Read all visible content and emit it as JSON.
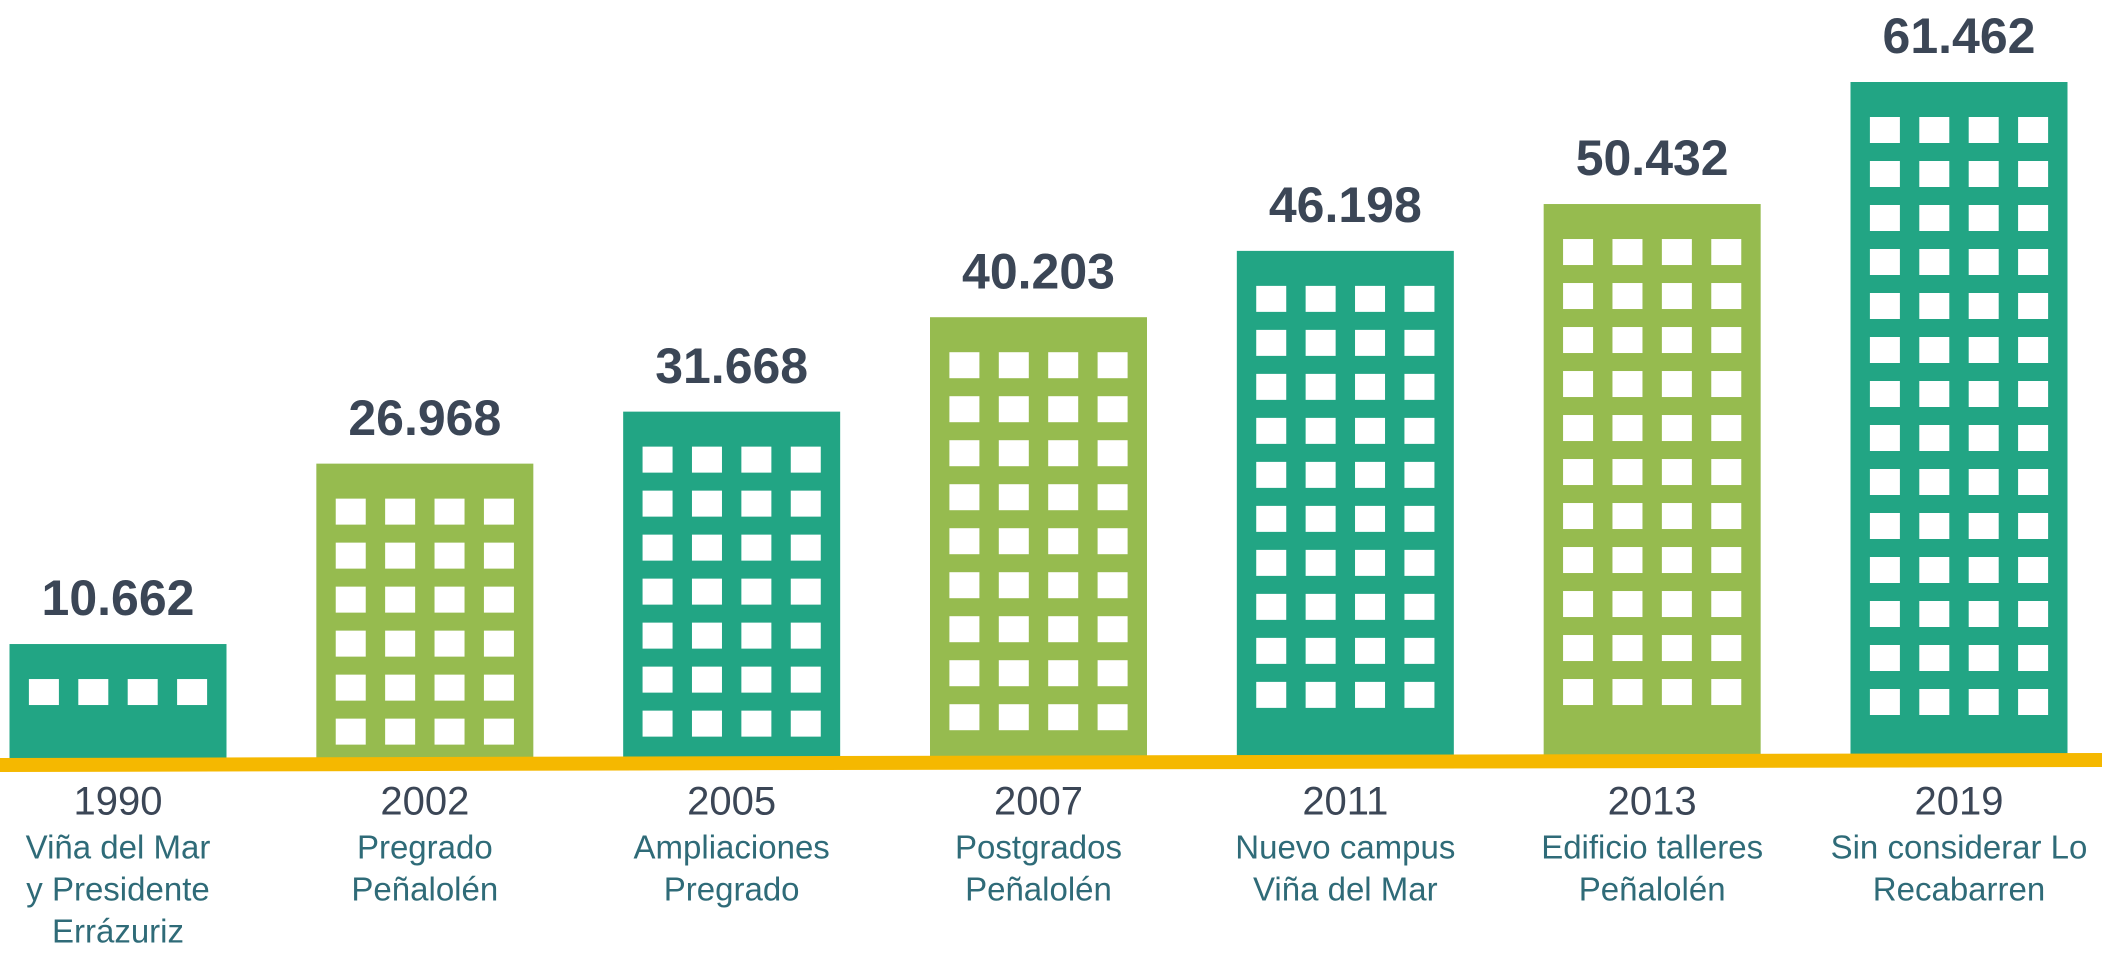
{
  "chart_data": {
    "type": "bar",
    "categories": [
      "1990",
      "2002",
      "2005",
      "2007",
      "2011",
      "2013",
      "2019"
    ],
    "descriptions": [
      [
        "Viña del Mar",
        "y Presidente",
        "Errázuriz"
      ],
      [
        "Pregrado",
        "Peñalolén"
      ],
      [
        "Ampliaciones",
        "Pregrado"
      ],
      [
        "Postgrados",
        "Peñalolén"
      ],
      [
        "Nuevo campus",
        "Viña del Mar"
      ],
      [
        "Edificio talleres",
        "Peñalolén"
      ],
      [
        "Sin considerar Lo",
        "Recabarren"
      ]
    ],
    "values": [
      10662,
      26968,
      31668,
      40203,
      46198,
      50432,
      61462
    ],
    "value_labels": [
      "10.662",
      "26.968",
      "31.668",
      "40.203",
      "46.198",
      "50.432",
      "61.462"
    ],
    "colors": [
      "#22a584",
      "#96bb4f",
      "#22a584",
      "#96bb4f",
      "#22a584",
      "#96bb4f",
      "#22a584"
    ],
    "ground_color": "#f5b800"
  }
}
